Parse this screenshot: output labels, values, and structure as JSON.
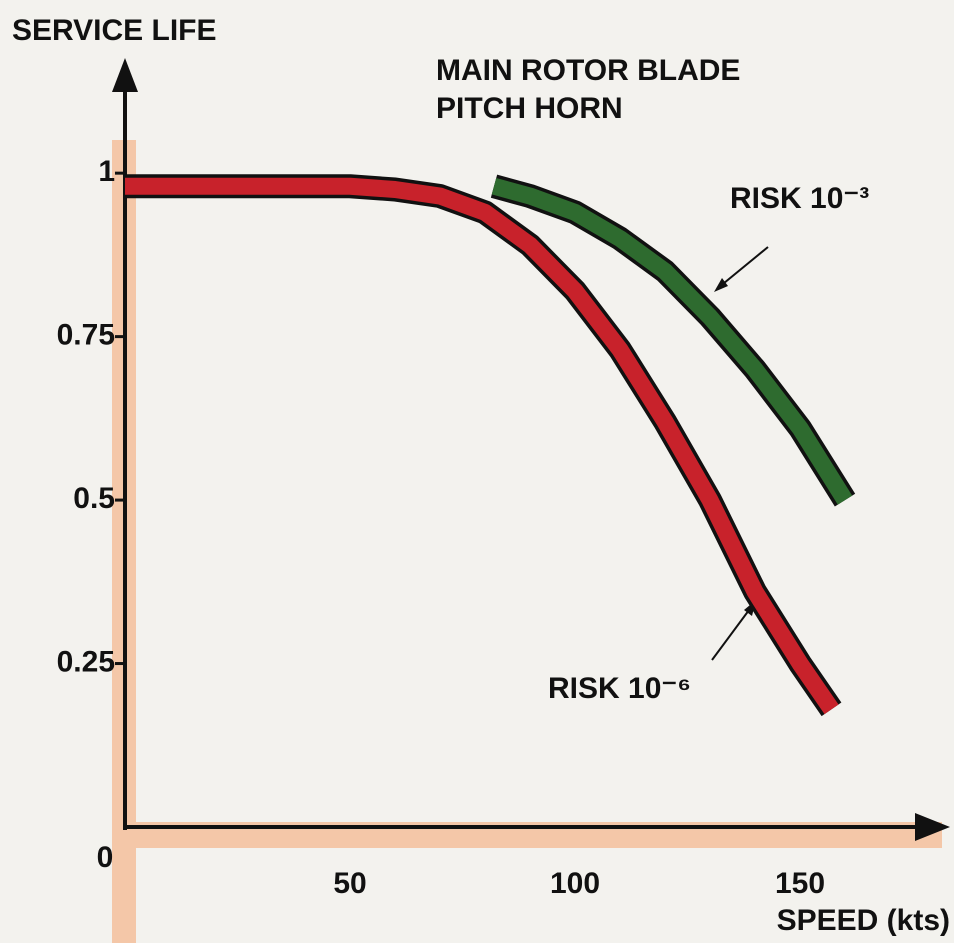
{
  "chart_data": {
    "type": "line",
    "title": [
      "MAIN ROTOR BLADE",
      "PITCH HORN"
    ],
    "ylabel": "SERVICE LIFE",
    "xlabel": "SPEED (kts)",
    "xlim": [
      0,
      182
    ],
    "ylim": [
      0,
      1.17
    ],
    "xticks": [
      0,
      50,
      100,
      150
    ],
    "yticks": [
      0.25,
      0.5,
      0.75,
      1
    ],
    "series": [
      {
        "name": "RISK 10⁻⁶",
        "color": "#c8222b",
        "x": [
          0,
          25,
          50,
          60,
          70,
          80,
          90,
          100,
          110,
          120,
          130,
          140,
          150,
          157
        ],
        "values": [
          0.98,
          0.98,
          0.98,
          0.975,
          0.965,
          0.94,
          0.89,
          0.82,
          0.73,
          0.62,
          0.5,
          0.36,
          0.25,
          0.18
        ]
      },
      {
        "name": "RISK 10⁻³",
        "color": "#2e6b2f",
        "x": [
          82,
          90,
          100,
          110,
          120,
          130,
          140,
          150,
          160
        ],
        "values": [
          0.98,
          0.965,
          0.94,
          0.9,
          0.85,
          0.78,
          0.7,
          0.61,
          0.5
        ]
      }
    ]
  }
}
